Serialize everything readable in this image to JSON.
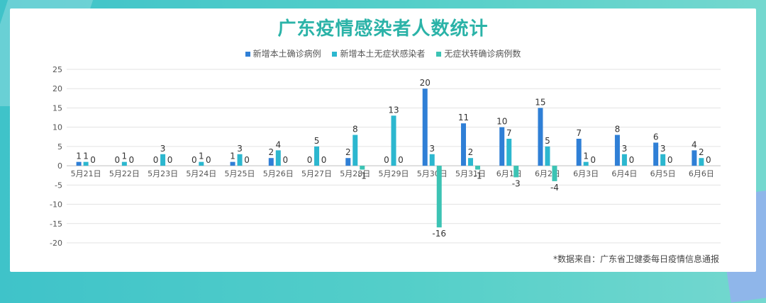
{
  "title": "广东疫情感染者人数统计",
  "source_note": "*数据来自：广东省卫健委每日疫情信息通报",
  "colors": {
    "background_teal": "#4cc9c7",
    "title": "#2bb3a8",
    "series_1": "#2f7fd6",
    "series_2": "#2cb7cf",
    "series_3": "#3cc3b4"
  },
  "chart_data": {
    "type": "bar",
    "categories": [
      "5月21日",
      "5月22日",
      "5月23日",
      "5月24日",
      "5月25日",
      "5月26日",
      "5月27日",
      "5月28日",
      "5月29日",
      "5月30日",
      "5月31日",
      "6月1日",
      "6月2日",
      "6月3日",
      "6月4日",
      "6月5日",
      "6月6日"
    ],
    "series": [
      {
        "name": "新增本土确诊病例",
        "color": "#2f7fd6",
        "values": [
          1,
          0,
          0,
          0,
          1,
          2,
          0,
          2,
          0,
          20,
          11,
          10,
          15,
          7,
          8,
          6,
          4
        ]
      },
      {
        "name": "新增本土无症状感染者",
        "color": "#2cb7cf",
        "values": [
          1,
          1,
          3,
          1,
          3,
          4,
          5,
          8,
          13,
          3,
          2,
          7,
          5,
          1,
          3,
          3,
          2
        ]
      },
      {
        "name": "无症状转确诊病例数",
        "color": "#3cc3b4",
        "values": [
          0,
          0,
          0,
          0,
          0,
          0,
          0,
          -1,
          0,
          -16,
          -1,
          -3,
          -4,
          0,
          0,
          0,
          0
        ]
      }
    ],
    "ylim": [
      -20,
      25
    ],
    "yticks": [
      25,
      20,
      15,
      10,
      5,
      0,
      -5,
      -10,
      -15,
      -20
    ],
    "grid": true,
    "legend_position": "top"
  }
}
